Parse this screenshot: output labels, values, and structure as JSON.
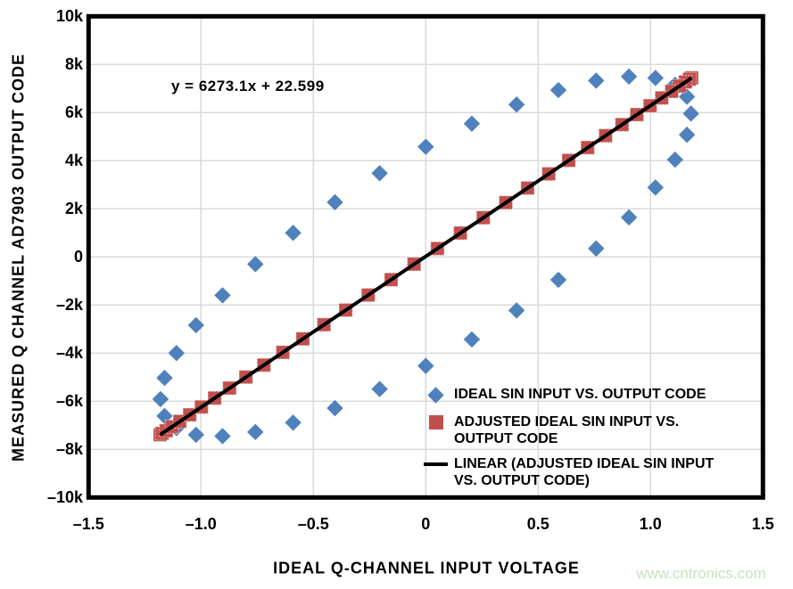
{
  "watermark": {
    "text": "www.cntronics.com",
    "color": "#c6e3bd"
  },
  "chart_data": {
    "type": "scatter",
    "title": "",
    "xlabel": "IDEAL Q-CHANNEL INPUT VOLTAGE",
    "ylabel": "MEASURED Q CHANNEL AD7903 OUTPUT CODE",
    "annotation": "y = 6273.1x + 22.599",
    "xlim": [
      -1.5,
      1.5
    ],
    "ylim": [
      -10000,
      10000
    ],
    "grid": true,
    "legend_position": "inside-lower-right",
    "colors": {
      "ideal": "#4f81bd",
      "adjusted": "#c0504d",
      "linear": "#000000",
      "gridline": "#d8d8d8",
      "border": "#000000"
    },
    "x_ticks": [
      {
        "value": -1.5,
        "label": "–1.5"
      },
      {
        "value": -1.0,
        "label": "–1.0"
      },
      {
        "value": -0.5,
        "label": "–0.5"
      },
      {
        "value": 0,
        "label": "0"
      },
      {
        "value": 0.5,
        "label": "0.5"
      },
      {
        "value": 1.0,
        "label": "1.0"
      },
      {
        "value": 1.5,
        "label": "1.5"
      }
    ],
    "y_ticks": [
      {
        "value": 10000,
        "label": "10k"
      },
      {
        "value": 8000,
        "label": "8k"
      },
      {
        "value": 6000,
        "label": "6k"
      },
      {
        "value": 4000,
        "label": "4k"
      },
      {
        "value": 2000,
        "label": "2k"
      },
      {
        "value": 0,
        "label": "0"
      },
      {
        "value": -2000,
        "label": "–2k"
      },
      {
        "value": -4000,
        "label": "–4k"
      },
      {
        "value": -6000,
        "label": "–6k"
      },
      {
        "value": -8000,
        "label": "–8k"
      },
      {
        "value": -10000,
        "label": "–10k"
      }
    ],
    "series": [
      {
        "name": "IDEAL SIN INPUT VS. OUTPUT CODE",
        "type": "scatter",
        "marker": "diamond",
        "color": "#4f81bd",
        "points": [
          [
            0.0,
            4577
          ],
          [
            0.205,
            5538
          ],
          [
            0.404,
            6332
          ],
          [
            0.59,
            6934
          ],
          [
            0.758,
            7326
          ],
          [
            0.904,
            7496
          ],
          [
            1.022,
            7439
          ],
          [
            1.109,
            7157
          ],
          [
            1.162,
            6658
          ],
          [
            1.18,
            5957
          ],
          [
            1.162,
            5076
          ],
          [
            1.109,
            4042
          ],
          [
            1.022,
            2885
          ],
          [
            0.904,
            1642
          ],
          [
            0.758,
            349
          ],
          [
            0.59,
            -953
          ],
          [
            0.404,
            -2226
          ],
          [
            0.205,
            -3431
          ],
          [
            0.0,
            -4531
          ],
          [
            -0.205,
            -5492
          ],
          [
            -0.404,
            -6286
          ],
          [
            -0.59,
            -6888
          ],
          [
            -0.758,
            -7280
          ],
          [
            -0.904,
            -7450
          ],
          [
            -1.022,
            -7393
          ],
          [
            -1.109,
            -7111
          ],
          [
            -1.162,
            -6612
          ],
          [
            -1.18,
            -5911
          ],
          [
            -1.162,
            -5030
          ],
          [
            -1.109,
            -3996
          ],
          [
            -1.022,
            -2839
          ],
          [
            -0.904,
            -1596
          ],
          [
            -0.758,
            -303
          ],
          [
            -0.59,
            999
          ],
          [
            -0.404,
            2272
          ],
          [
            -0.205,
            3477
          ]
        ]
      },
      {
        "name": "ADJUSTED IDEAL SIN INPUT VS. OUTPUT CODE",
        "type": "scatter",
        "marker": "square",
        "color": "#c0504d",
        "points": [
          [
            0.052,
            347
          ],
          [
            0.154,
            992
          ],
          [
            0.256,
            1630
          ],
          [
            0.356,
            2256
          ],
          [
            0.453,
            2864
          ],
          [
            0.547,
            3452
          ],
          [
            0.636,
            4013
          ],
          [
            0.72,
            4543
          ],
          [
            0.8,
            5039
          ],
          [
            0.873,
            5497
          ],
          [
            0.939,
            5914
          ],
          [
            0.998,
            6285
          ],
          [
            1.05,
            6609
          ],
          [
            1.094,
            6883
          ],
          [
            1.129,
            7104
          ],
          [
            1.155,
            7272
          ],
          [
            1.173,
            7384
          ],
          [
            1.183,
            7441
          ],
          [
            1.183,
            7441
          ],
          [
            1.173,
            7384
          ],
          [
            1.155,
            7272
          ],
          [
            1.129,
            7104
          ],
          [
            1.094,
            6883
          ],
          [
            1.05,
            6609
          ],
          [
            0.998,
            6285
          ],
          [
            0.939,
            5914
          ],
          [
            0.873,
            5497
          ],
          [
            0.8,
            5039
          ],
          [
            0.72,
            4543
          ],
          [
            0.636,
            4013
          ],
          [
            0.547,
            3452
          ],
          [
            0.453,
            2864
          ],
          [
            0.356,
            2256
          ],
          [
            0.256,
            1630
          ],
          [
            0.154,
            992
          ],
          [
            0.052,
            347
          ],
          [
            -0.052,
            -301
          ],
          [
            -0.154,
            -946
          ],
          [
            -0.256,
            -1584
          ],
          [
            -0.356,
            -2210
          ],
          [
            -0.453,
            -2818
          ],
          [
            -0.547,
            -3406
          ],
          [
            -0.636,
            -3966
          ],
          [
            -0.72,
            -4497
          ],
          [
            -0.8,
            -4993
          ],
          [
            -0.873,
            -5451
          ],
          [
            -0.939,
            -5868
          ],
          [
            -0.998,
            -6239
          ],
          [
            -1.05,
            -6563
          ],
          [
            -1.094,
            -6837
          ],
          [
            -1.129,
            -7058
          ],
          [
            -1.155,
            -7226
          ],
          [
            -1.173,
            -7338
          ],
          [
            -1.182,
            -7395
          ],
          [
            -1.182,
            -7395
          ],
          [
            -1.173,
            -7338
          ],
          [
            -1.155,
            -7226
          ],
          [
            -1.129,
            -7058
          ],
          [
            -1.094,
            -6837
          ],
          [
            -1.05,
            -6563
          ],
          [
            -0.998,
            -6239
          ],
          [
            -0.939,
            -5868
          ],
          [
            -0.873,
            -5451
          ],
          [
            -0.8,
            -4993
          ],
          [
            -0.72,
            -4497
          ],
          [
            -0.636,
            -3966
          ],
          [
            -0.547,
            -3406
          ],
          [
            -0.453,
            -2818
          ],
          [
            -0.356,
            -2210
          ],
          [
            -0.256,
            -1584
          ],
          [
            -0.154,
            -946
          ],
          [
            -0.052,
            -301
          ]
        ]
      },
      {
        "name": "LINEAR (ADJUSTED IDEAL SIN INPUT VS. OUTPUT CODE)",
        "type": "line",
        "color": "#000000",
        "equation": "y = 6273.1x + 22.599",
        "points": [
          [
            -1.182,
            -7395
          ],
          [
            1.183,
            7441
          ]
        ]
      }
    ],
    "legend": [
      {
        "marker": "diamond",
        "color": "#4f81bd",
        "lines": [
          "IDEAL SIN INPUT VS. OUTPUT CODE"
        ]
      },
      {
        "marker": "square",
        "color": "#c0504d",
        "lines": [
          "ADJUSTED IDEAL SIN INPUT VS.",
          "OUTPUT CODE"
        ]
      },
      {
        "marker": "line",
        "color": "#000000",
        "lines": [
          "LINEAR (ADJUSTED IDEAL SIN INPUT",
          "VS. OUTPUT CODE)"
        ]
      }
    ]
  }
}
